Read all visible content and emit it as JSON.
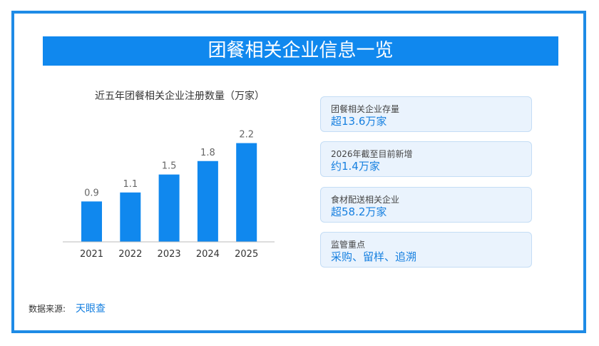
{
  "banner_title": "团餐相关企业信息一览",
  "chart_data": {
    "type": "bar",
    "title": "近五年团餐相关企业注册数量（万家）",
    "categories": [
      "2021",
      "2022",
      "2023",
      "2024",
      "2025"
    ],
    "values": [
      0.9,
      1.1,
      1.5,
      1.8,
      2.2
    ],
    "data_labels": [
      "0.9",
      "1.1",
      "1.5",
      "1.8",
      "2.2"
    ],
    "ylim": [
      0,
      2.4
    ],
    "grid": false,
    "bar_color": "#1088ee"
  },
  "cards": [
    {
      "label": "团餐相关企业存量",
      "value": "超13.6万家"
    },
    {
      "label": "2026年截至目前新增",
      "value": "约1.4万家"
    },
    {
      "label": "食材配送相关企业",
      "value": "超58.2万家"
    },
    {
      "label": "监管重点",
      "value": "采购、留样、追溯"
    }
  ],
  "source": {
    "label": "数据来源:",
    "value": "天眼查"
  },
  "colors": {
    "accent": "#1088ee",
    "card_bg": "#eaf3fd",
    "frame": "#1e8be6"
  }
}
